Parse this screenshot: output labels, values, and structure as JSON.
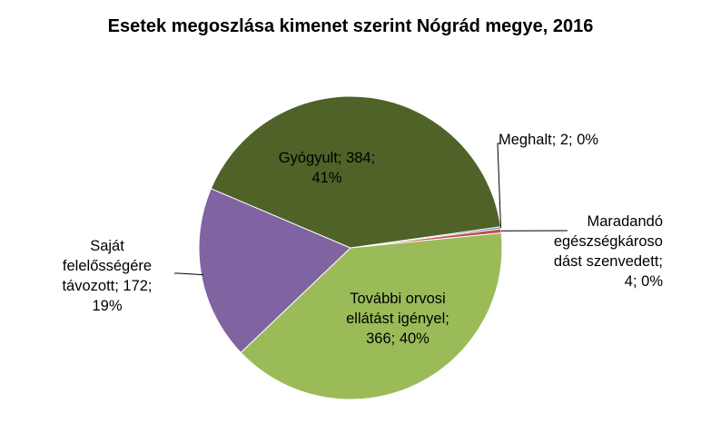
{
  "chart_data": {
    "type": "pie",
    "title": "Esetek megoszlása kimenet szerint Nógrád megye, 2016",
    "slices": [
      {
        "label": "Meghalt",
        "value": 2,
        "percent": "0%",
        "color": "#4F81BD",
        "text_lines": [
          "Meghalt; 2; 0%"
        ]
      },
      {
        "label": "Maradandó egészségkárosodást szenvedett",
        "value": 4,
        "percent": "0%",
        "color": "#C0504D",
        "text_lines": [
          "Maradandó",
          "egészségkároso",
          "dást szenvedett;",
          "4; 0%"
        ]
      },
      {
        "label": "További orvosi ellátást igényel",
        "value": 366,
        "percent": "40%",
        "color": "#9BBB59",
        "text_lines": [
          "További orvosi",
          "ellátást igényel;",
          "366; 40%"
        ]
      },
      {
        "label": "Saját felelősségére távozott",
        "value": 172,
        "percent": "19%",
        "color": "#8064A2",
        "text_lines": [
          "Saját",
          "felelősségére",
          "távozott; 172;",
          "19%"
        ]
      },
      {
        "label": "Gyógyult",
        "value": 384,
        "percent": "41%",
        "color": "#4F6228",
        "text_lines": [
          "Gyógyult; 384;",
          "41%"
        ]
      }
    ]
  }
}
